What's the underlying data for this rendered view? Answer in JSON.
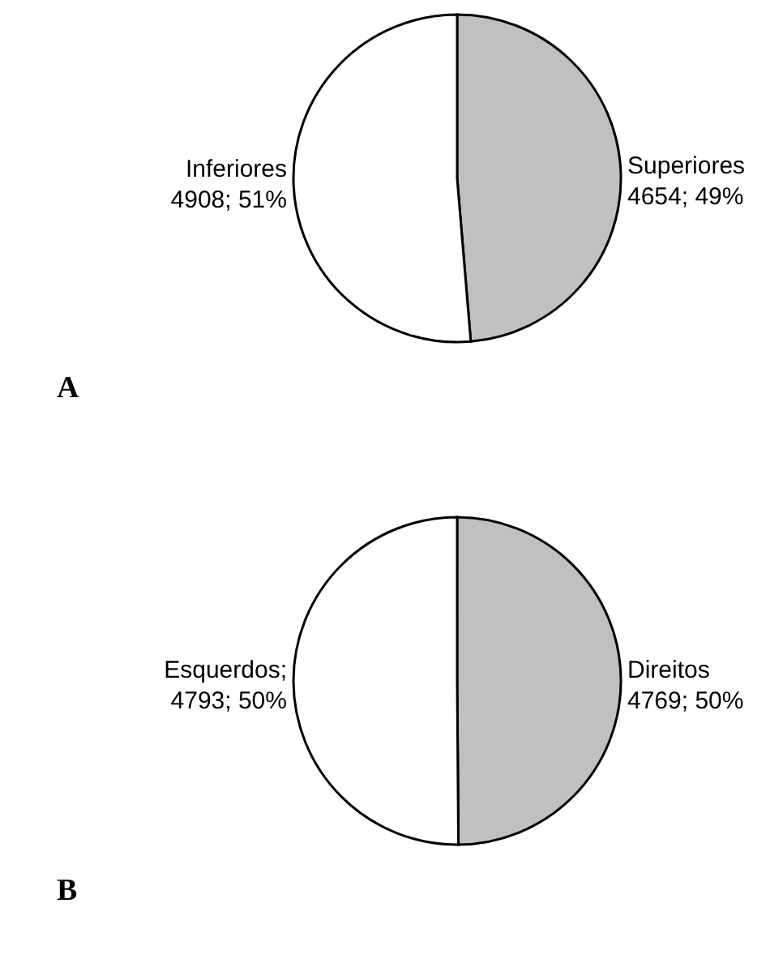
{
  "chart_data": [
    {
      "type": "pie",
      "title": "A",
      "categories": [
        "Superiores",
        "Inferiores"
      ],
      "values": [
        4654,
        4908
      ],
      "colors": [
        "#c0c0c0",
        "#ffffff"
      ],
      "value_labels": [
        "4654; 49%",
        "4908; 51%"
      ]
    },
    {
      "type": "pie",
      "title": "B",
      "categories": [
        "Direitos",
        "Esquerdos"
      ],
      "values": [
        4769,
        4793
      ],
      "colors": [
        "#c0c0c0",
        "#ffffff"
      ],
      "value_labels": [
        "4769; 50%",
        ";4793; 50%"
      ]
    }
  ]
}
